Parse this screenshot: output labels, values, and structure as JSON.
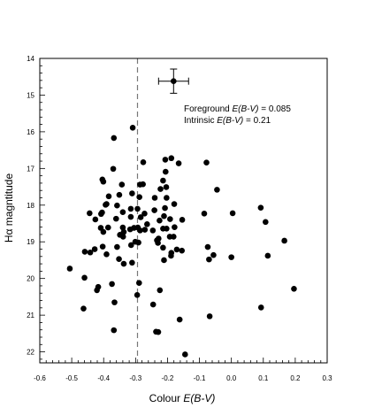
{
  "chart_data": {
    "type": "scatter",
    "xlabel_prefix": "Colour ",
    "xlabel_italic": "E(B-V)",
    "ylabel": "Hα magntitude",
    "xlim": [
      -0.6,
      0.3
    ],
    "ylim": [
      14,
      22.3
    ],
    "y_inverted": true,
    "grid": false,
    "legend": "none",
    "xticks": [
      "-0.6",
      "-0.5",
      "-0.4",
      "-0.3",
      "-0.2",
      "-0.1",
      "0.0",
      "0.1",
      "0.2",
      "0.3"
    ],
    "yticks": [
      "14",
      "15",
      "16",
      "17",
      "18",
      "19",
      "20",
      "21",
      "22"
    ],
    "annotations": [
      {
        "prefix": "Foreground ",
        "italic": "E(B-V)",
        "suffix": " = 0.085"
      },
      {
        "prefix": "Intrinsic ",
        "italic": "E(B-V)",
        "suffix": " = 0.21"
      }
    ],
    "reference_line": {
      "x": -0.294,
      "style": "dashed"
    },
    "error_bar_point": {
      "x": -0.181,
      "y": 14.62,
      "xerr": 0.047,
      "yerr": 0.33
    },
    "points": [
      [
        -0.309,
        15.89
      ],
      [
        -0.368,
        16.17
      ],
      [
        -0.37,
        17.01
      ],
      [
        -0.343,
        17.44
      ],
      [
        -0.351,
        17.72
      ],
      [
        -0.311,
        17.68
      ],
      [
        -0.286,
        17.44
      ],
      [
        -0.276,
        16.83
      ],
      [
        -0.277,
        17.43
      ],
      [
        -0.288,
        17.78
      ],
      [
        -0.207,
        16.76
      ],
      [
        -0.188,
        16.72
      ],
      [
        -0.165,
        16.86
      ],
      [
        -0.206,
        17.09
      ],
      [
        -0.214,
        17.33
      ],
      [
        -0.222,
        17.56
      ],
      [
        -0.204,
        17.51
      ],
      [
        -0.404,
        17.3
      ],
      [
        -0.401,
        17.36
      ],
      [
        -0.384,
        17.76
      ],
      [
        -0.391,
        17.97
      ],
      [
        -0.394,
        17.99
      ],
      [
        -0.358,
        18.01
      ],
      [
        -0.34,
        18.19
      ],
      [
        -0.315,
        18.1
      ],
      [
        -0.315,
        18.32
      ],
      [
        -0.294,
        18.1
      ],
      [
        -0.284,
        18.33
      ],
      [
        -0.272,
        18.23
      ],
      [
        -0.264,
        18.52
      ],
      [
        -0.24,
        17.8
      ],
      [
        -0.241,
        18.14
      ],
      [
        -0.225,
        18.42
      ],
      [
        -0.211,
        18.3
      ],
      [
        -0.208,
        18.08
      ],
      [
        -0.203,
        17.8
      ],
      [
        -0.179,
        17.97
      ],
      [
        -0.192,
        18.38
      ],
      [
        -0.178,
        18.6
      ],
      [
        -0.154,
        18.4
      ],
      [
        -0.444,
        18.22
      ],
      [
        -0.426,
        18.39
      ],
      [
        -0.408,
        18.24
      ],
      [
        -0.405,
        18.2
      ],
      [
        -0.409,
        18.62
      ],
      [
        -0.401,
        18.73
      ],
      [
        -0.386,
        18.61
      ],
      [
        -0.361,
        18.37
      ],
      [
        -0.34,
        18.61
      ],
      [
        -0.337,
        18.73
      ],
      [
        -0.317,
        18.66
      ],
      [
        -0.305,
        18.62
      ],
      [
        -0.293,
        18.61
      ],
      [
        -0.286,
        18.69
      ],
      [
        -0.271,
        18.67
      ],
      [
        -0.246,
        18.69
      ],
      [
        -0.228,
        18.91
      ],
      [
        -0.214,
        18.64
      ],
      [
        -0.203,
        18.64
      ],
      [
        -0.193,
        18.86
      ],
      [
        -0.181,
        18.86
      ],
      [
        -0.155,
        19.24
      ],
      [
        -0.171,
        19.21
      ],
      [
        -0.189,
        19.38
      ],
      [
        -0.211,
        19.5
      ],
      [
        -0.233,
        18.96
      ],
      [
        -0.23,
        19.03
      ],
      [
        -0.214,
        19.16
      ],
      [
        -0.188,
        19.3
      ],
      [
        -0.291,
        19.02
      ],
      [
        -0.301,
        19.0
      ],
      [
        -0.314,
        19.09
      ],
      [
        -0.339,
        18.86
      ],
      [
        -0.349,
        18.81
      ],
      [
        -0.358,
        19.14
      ],
      [
        -0.428,
        19.2
      ],
      [
        -0.442,
        19.29
      ],
      [
        -0.403,
        19.13
      ],
      [
        -0.391,
        19.34
      ],
      [
        -0.352,
        19.47
      ],
      [
        -0.337,
        19.6
      ],
      [
        -0.311,
        19.57
      ],
      [
        -0.459,
        19.27
      ],
      [
        -0.46,
        19.98
      ],
      [
        -0.506,
        19.73
      ],
      [
        -0.421,
        20.32
      ],
      [
        -0.417,
        20.23
      ],
      [
        -0.463,
        20.82
      ],
      [
        -0.374,
        20.15
      ],
      [
        -0.366,
        20.65
      ],
      [
        -0.368,
        21.41
      ],
      [
        -0.289,
        20.12
      ],
      [
        -0.295,
        20.45
      ],
      [
        -0.245,
        20.71
      ],
      [
        -0.224,
        20.32
      ],
      [
        -0.236,
        21.45
      ],
      [
        -0.229,
        21.46
      ],
      [
        -0.162,
        21.12
      ],
      [
        -0.145,
        22.07
      ],
      [
        -0.085,
        18.23
      ],
      [
        -0.078,
        16.84
      ],
      [
        -0.045,
        17.58
      ],
      [
        -0.07,
        19.48
      ],
      [
        -0.056,
        19.36
      ],
      [
        -0.074,
        19.14
      ],
      [
        0.004,
        18.22
      ],
      [
        0.0,
        19.42
      ],
      [
        0.092,
        18.07
      ],
      [
        0.107,
        18.46
      ],
      [
        0.166,
        18.97
      ],
      [
        0.114,
        19.38
      ],
      [
        0.196,
        20.28
      ],
      [
        0.093,
        20.79
      ],
      [
        -0.068,
        21.03
      ]
    ]
  }
}
